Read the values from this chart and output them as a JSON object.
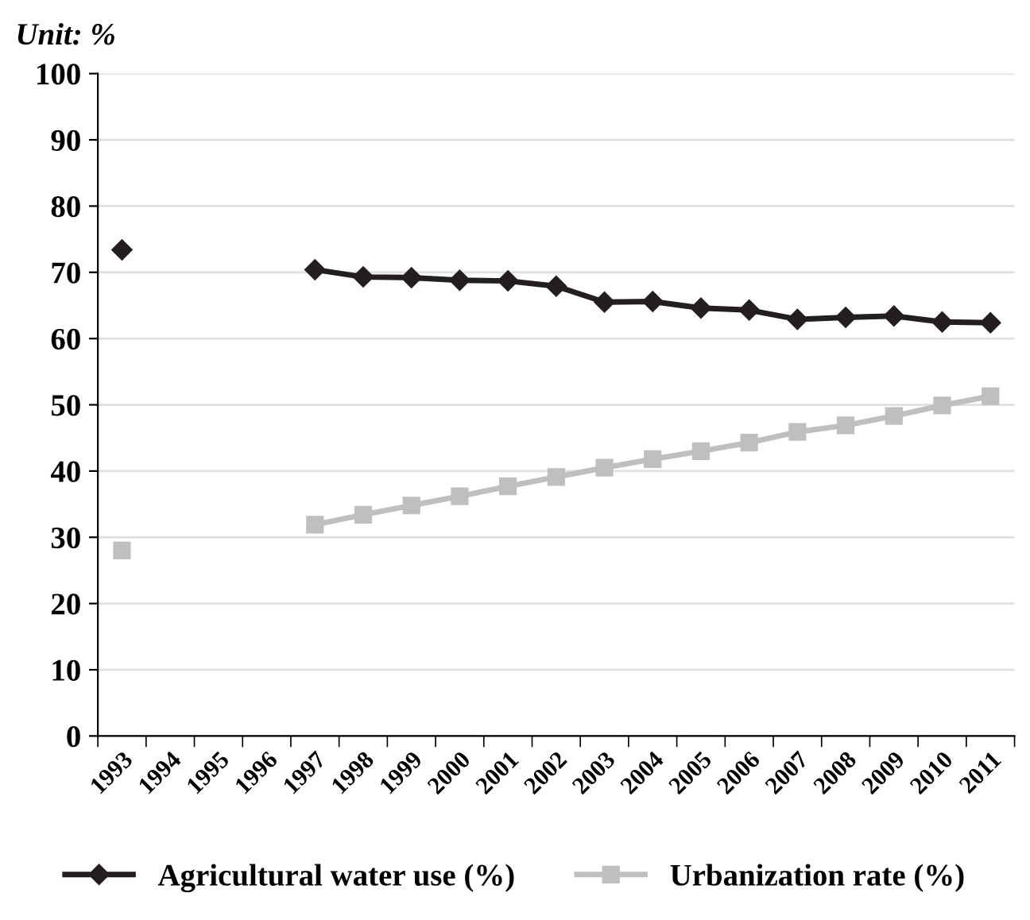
{
  "chart_data": {
    "type": "line",
    "ylabel": "Unit: %",
    "categories": [
      "1993",
      "1994",
      "1995",
      "1996",
      "1997",
      "1998",
      "1999",
      "2000",
      "2001",
      "2002",
      "2003",
      "2004",
      "2005",
      "2006",
      "2007",
      "2008",
      "2009",
      "2010",
      "2011"
    ],
    "series": [
      {
        "name": "Agricultural water use (%)",
        "color": "#231f20",
        "marker": "diamond",
        "values": [
          73.4,
          null,
          null,
          null,
          70.4,
          69.3,
          69.2,
          68.8,
          68.7,
          67.9,
          65.5,
          65.6,
          64.6,
          64.3,
          62.9,
          63.2,
          63.4,
          62.5,
          62.4
        ]
      },
      {
        "name": "Urbanization rate (%)",
        "color": "#bfbfbf",
        "marker": "square",
        "values": [
          28.0,
          null,
          null,
          null,
          31.9,
          33.4,
          34.8,
          36.2,
          37.7,
          39.1,
          40.5,
          41.8,
          43.0,
          44.3,
          45.9,
          46.9,
          48.3,
          49.9,
          51.3
        ]
      }
    ],
    "ylim": [
      0,
      100
    ],
    "yticks": [
      0,
      10,
      20,
      30,
      40,
      50,
      60,
      70,
      80,
      90,
      100
    ],
    "grid": "y",
    "legend": "bottom",
    "line_style": "solid"
  }
}
